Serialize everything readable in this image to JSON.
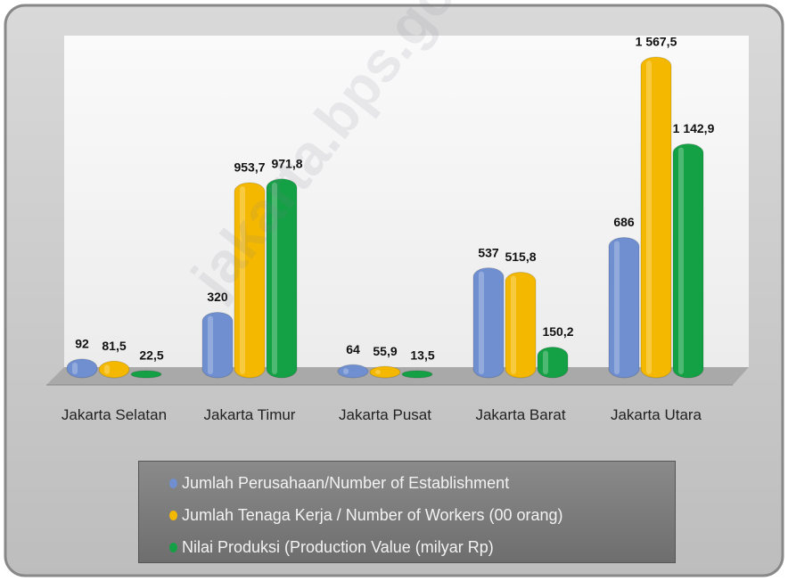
{
  "chart_data": {
    "type": "bar",
    "categories": [
      "Jakarta Selatan",
      "Jakarta Timur",
      "Jakarta Pusat",
      "Jakarta Barat",
      "Jakarta Utara"
    ],
    "series": [
      {
        "name": "Jumlah Perusahaan/Number of Establishment",
        "color": "#6f8fd0",
        "values": [
          92,
          320,
          64,
          537,
          686
        ],
        "value_labels": [
          "92",
          "320",
          "64",
          "537",
          "686"
        ]
      },
      {
        "name": "Jumlah Tenaga Kerja / Number of Workers (00 orang)",
        "color": "#f4b800",
        "values": [
          81.5,
          953.7,
          55.9,
          515.8,
          1567.5
        ],
        "value_labels": [
          "81,5",
          "953,7",
          "55,9",
          "515,8",
          "1 567,5"
        ]
      },
      {
        "name": "Nilai Produksi (Production Value  (milyar Rp)",
        "color": "#14a045",
        "values": [
          22.5,
          971.8,
          13.5,
          150.2,
          1142.9
        ],
        "value_labels": [
          "22,5",
          "971,8",
          "13,5",
          "150,2",
          "1 142,9"
        ]
      }
    ],
    "watermark": "jakarta.bps.go.id"
  }
}
